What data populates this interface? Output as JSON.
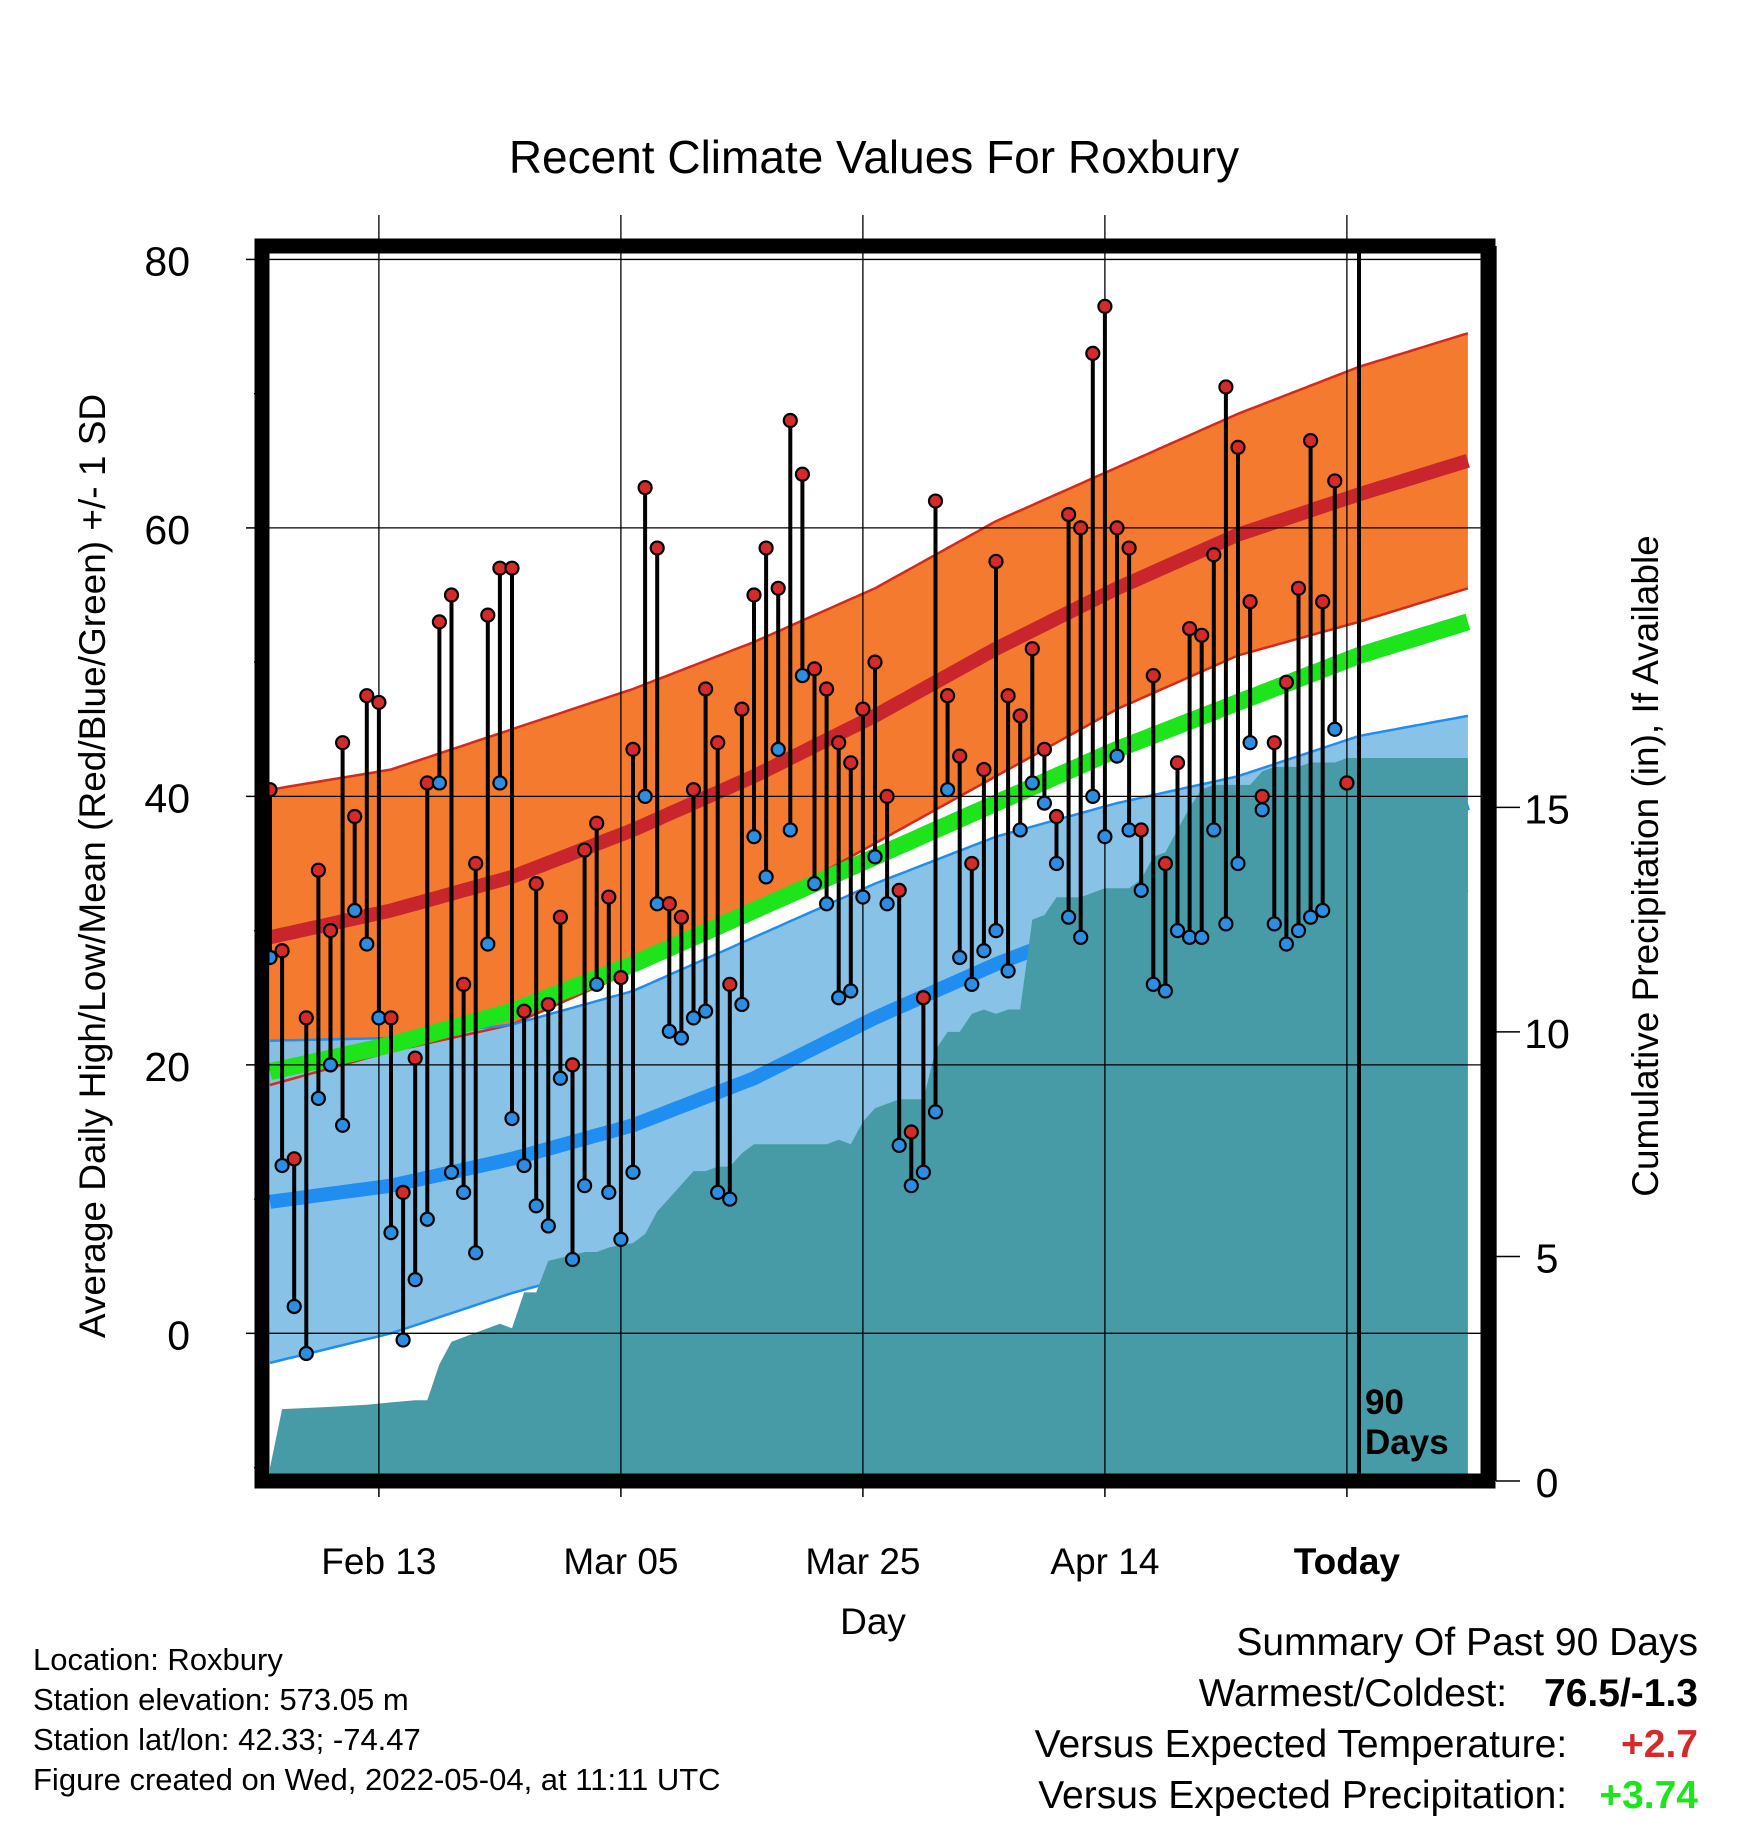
{
  "chart_data": {
    "type": "line",
    "title": "Recent Climate Values For Roxbury",
    "xlabel": "Day",
    "ylabel": "Average Daily High/Low/Mean (Red/Blue/Green) +/- 1 SD",
    "y2label": "Cumulative Precipitation (in), If Available",
    "x_ticks": [
      "Feb 13",
      "Mar 05",
      "Mar 25",
      "Apr 14",
      "Today"
    ],
    "y_ticks": [
      "0",
      "20",
      "40",
      "60",
      "80"
    ],
    "y2_ticks": [
      "0",
      "5",
      "10",
      "15"
    ],
    "ylim": [
      -11,
      81
    ],
    "y2lim": [
      0,
      27.5
    ],
    "days_in_window": 90,
    "today_label": "90 Days",
    "grid": true,
    "colors": {
      "high_band": "#f47a2f",
      "high_mean": "#c8262c",
      "low_band": "#84c1e6",
      "low_mean": "#1f8ef0",
      "mean": "#1ee41c",
      "precip": "#479ba6",
      "obs_high_point": "#d42a2a",
      "obs_low_point": "#2b8ee2"
    },
    "normal_high": {
      "day": [
        0,
        10,
        20,
        30,
        40,
        50,
        60,
        70,
        80,
        90,
        99
      ],
      "values": [
        29.5,
        31.5,
        34,
        37.5,
        41.5,
        46,
        51,
        55.5,
        59.5,
        62.5,
        65
      ]
    },
    "normal_high_sd": [
      11,
      10.5,
      11,
      10.5,
      10,
      9.5,
      9.5,
      9,
      9,
      9.5,
      9.5
    ],
    "normal_low": {
      "day": [
        0,
        10,
        20,
        30,
        40,
        50,
        60,
        70,
        80,
        90,
        99
      ],
      "values": [
        9.8,
        11,
        13,
        15.5,
        19,
        23.5,
        27.5,
        31,
        34,
        37,
        39.5
      ]
    },
    "normal_low_sd": [
      12,
      11,
      10,
      10,
      10.5,
      10,
      9.5,
      8.5,
      7.5,
      7.5,
      6.5
    ],
    "normal_mean": {
      "day": [
        0,
        10,
        20,
        30,
        40,
        50,
        60,
        70,
        80,
        90,
        99
      ],
      "values": [
        19.5,
        21.5,
        24,
        27.5,
        31.5,
        35.5,
        39.5,
        43.5,
        47,
        50.5,
        53
      ]
    },
    "observed": {
      "day": [
        0,
        1,
        2,
        3,
        4,
        5,
        6,
        7,
        8,
        9,
        10,
        11,
        12,
        13,
        14,
        15,
        16,
        17,
        18,
        19,
        20,
        21,
        22,
        23,
        24,
        25,
        26,
        27,
        28,
        29,
        30,
        31,
        32,
        33,
        34,
        35,
        36,
        37,
        38,
        39,
        40,
        41,
        42,
        43,
        44,
        45,
        46,
        47,
        48,
        49,
        50,
        51,
        52,
        53,
        54,
        55,
        56,
        57,
        58,
        59,
        60,
        61,
        62,
        63,
        64,
        65,
        66,
        67,
        68,
        69,
        70,
        71,
        72,
        73,
        74,
        75,
        76,
        77,
        78,
        79,
        80,
        81,
        82,
        83,
        84,
        85,
        86,
        87,
        88,
        89
      ],
      "high": [
        40.5,
        28.5,
        13,
        23.5,
        34.5,
        30,
        44,
        38.5,
        47.5,
        47,
        23.5,
        10.5,
        20.5,
        41,
        53,
        55,
        26,
        35,
        53.5,
        57,
        57,
        24,
        33.5,
        24.5,
        31,
        20,
        36,
        38,
        32.5,
        26.5,
        43.5,
        63,
        58.5,
        32,
        31,
        40.5,
        48,
        44,
        26,
        46.5,
        55,
        58.5,
        55.5,
        68,
        64,
        49.5,
        48,
        44,
        42.5,
        46.5,
        50,
        40,
        33,
        15,
        25,
        62,
        47.5,
        43,
        35,
        42,
        57.5,
        47.5,
        46,
        51,
        43.5,
        38.5,
        61,
        60,
        73,
        76.5,
        60,
        58.5,
        37.5,
        49,
        35,
        42.5,
        52.5,
        52,
        58,
        70.5,
        66,
        54.5,
        40,
        44,
        48.5,
        55.5,
        66.5,
        54.5,
        63.5,
        41
      ],
      "low": [
        28,
        12.5,
        2,
        -1.5,
        17.5,
        20,
        15.5,
        31.5,
        29,
        23.5,
        7.5,
        -0.5,
        4,
        8.5,
        41,
        12,
        10.5,
        6,
        29,
        41,
        16,
        12.5,
        9.5,
        8,
        19,
        5.5,
        11,
        26,
        10.5,
        7,
        12,
        40,
        32,
        22.5,
        22,
        23.5,
        24,
        10.5,
        10,
        24.5,
        37,
        34,
        43.5,
        37.5,
        49,
        33.5,
        32,
        25,
        25.5,
        32.5,
        35.5,
        32,
        14,
        11,
        12,
        16.5,
        40.5,
        28,
        26,
        28.5,
        30,
        27,
        37.5,
        41,
        39.5,
        35,
        31,
        29.5,
        40,
        37,
        43,
        37.5,
        33,
        26,
        25.5,
        30,
        29.5,
        29.5,
        37.5,
        30.5,
        35,
        44,
        39,
        30.5,
        29,
        30,
        31,
        31.5,
        45,
        41
      ]
    },
    "precip_cumulative": {
      "day": [
        0,
        1,
        5,
        8,
        10,
        12,
        13,
        14,
        15,
        17,
        19,
        20,
        21,
        22,
        23,
        26,
        27,
        28,
        30,
        31,
        32,
        33,
        34,
        35,
        36,
        37,
        38,
        39,
        40,
        41,
        42,
        43,
        44,
        45,
        46,
        47,
        48,
        49,
        50,
        51,
        52,
        53,
        54,
        55,
        56,
        57,
        58,
        59,
        60,
        61,
        62,
        63,
        64,
        65,
        66,
        67,
        68,
        69,
        70,
        71,
        72,
        73,
        74,
        75,
        76,
        77,
        78,
        79,
        80,
        81,
        82,
        83,
        84,
        85,
        86,
        87,
        88,
        89,
        99
      ],
      "values": [
        0.3,
        1.6,
        1.65,
        1.7,
        1.75,
        1.8,
        1.8,
        2.6,
        3.1,
        3.3,
        3.5,
        3.4,
        4.2,
        4.2,
        4.9,
        5.1,
        5.1,
        5.2,
        5.3,
        5.5,
        6.0,
        6.3,
        6.6,
        6.9,
        6.9,
        7.0,
        7.0,
        7.3,
        7.5,
        7.5,
        7.5,
        7.5,
        7.5,
        7.5,
        7.5,
        7.6,
        7.5,
        8.0,
        8.3,
        8.4,
        8.5,
        8.5,
        8.5,
        9.6,
        10.0,
        10.0,
        10.4,
        10.5,
        10.4,
        10.5,
        10.5,
        12.5,
        12.6,
        13.0,
        13.0,
        13.0,
        13.1,
        13.2,
        13.2,
        13.2,
        13.4,
        13.9,
        14.0,
        14.5,
        15.0,
        15.4,
        15.5,
        15.5,
        15.5,
        15.5,
        15.8,
        15.9,
        15.9,
        15.9,
        16.0,
        16.0,
        16.0,
        16.1,
        16.1
      ]
    }
  },
  "meta": {
    "location": "Location: Roxbury",
    "elevation": "Station elevation: 573.05 m",
    "latlon": "Station lat/lon: 42.33; -74.47",
    "created": "Figure created on Wed, 2022-05-04, at 11:11 UTC"
  },
  "summary": {
    "heading": "Summary Of Past 90 Days",
    "warmest_coldest_label": "Warmest/Coldest:",
    "warmest_coldest_value": "76.5/-1.3",
    "temp_label": "Versus Expected Temperature:",
    "temp_value": "+2.7",
    "temp_color": "#d42a2a",
    "precip_label": "Versus Expected Precipitation:",
    "precip_value": "+3.74",
    "precip_color": "#1ee41c"
  }
}
